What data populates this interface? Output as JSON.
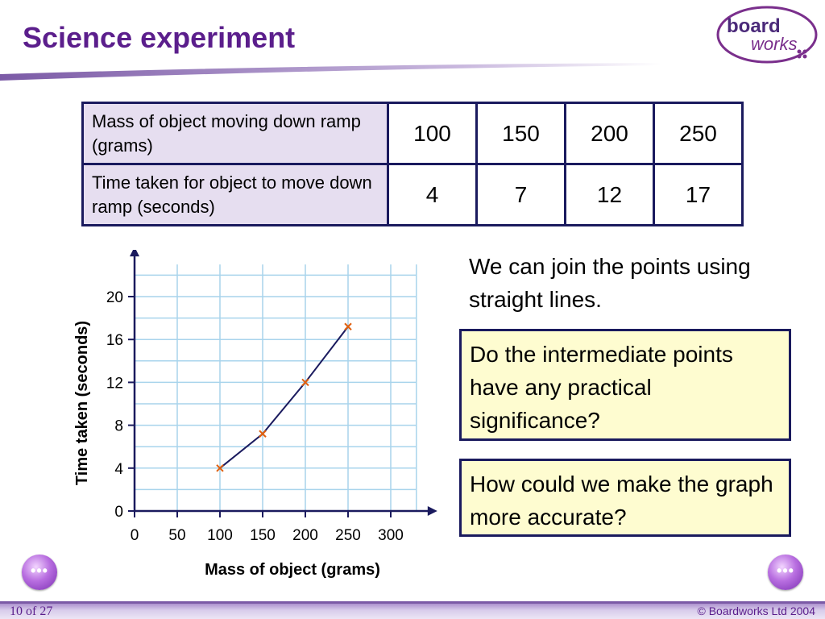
{
  "header": {
    "title": "Science experiment"
  },
  "logo": {
    "line1": "board",
    "line2": "works"
  },
  "table": {
    "rows": [
      {
        "label": "Mass of object moving down ramp (grams)",
        "values": [
          "100",
          "150",
          "200",
          "250"
        ]
      },
      {
        "label": "Time taken for object to move down ramp (seconds)",
        "values": [
          "4",
          "7",
          "12",
          "17"
        ]
      }
    ]
  },
  "chart_data": {
    "type": "line",
    "xlabel": "Mass of object (grams)",
    "ylabel": "Time taken (seconds)",
    "x_ticks": [
      0,
      50,
      100,
      150,
      200,
      250,
      300
    ],
    "y_ticks": [
      0,
      4,
      8,
      12,
      16,
      20
    ],
    "xlim": [
      0,
      330
    ],
    "ylim": [
      0,
      23
    ],
    "x": [
      100,
      150,
      200,
      250
    ],
    "y": [
      4,
      7.2,
      12,
      17.2
    ],
    "grid": true,
    "marker": "x",
    "colors": {
      "line": "#1a1a5e",
      "marker": "#e06010",
      "grid": "#a8d4ec",
      "axes": "#1a1a5e"
    }
  },
  "text": {
    "join_note": "We can join the points using straight lines.",
    "question1": "Do the intermediate points have any practical significance?",
    "question2": "How could we make the graph more accurate?"
  },
  "nav": {
    "prev_label": "•••",
    "next_label": "•••"
  },
  "footer": {
    "slide_count": "10 of 27",
    "copyright": "© Boardworks Ltd 2004"
  },
  "colors": {
    "title": "#5b1e8c",
    "header_cell": "#e6def0",
    "question_box": "#fefcd0",
    "border": "#1a1a5e"
  }
}
